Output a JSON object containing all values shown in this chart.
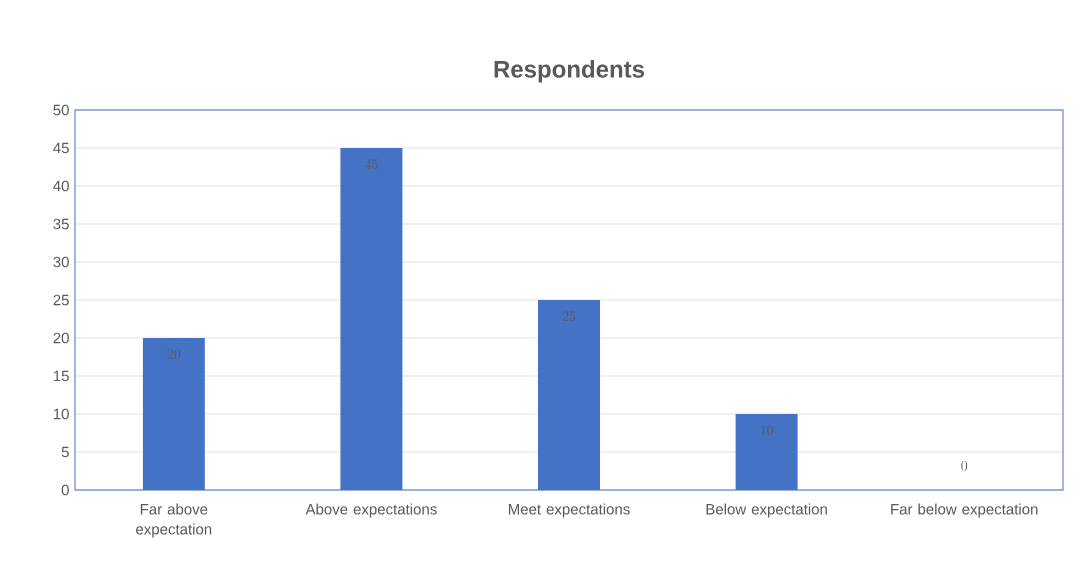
{
  "chart_data": {
    "type": "bar",
    "title": "Respondents",
    "categories": [
      "Far above expectation",
      "Above expectations",
      "Meet expectations",
      "Below expectation",
      "Far below expectation"
    ],
    "values": [
      20,
      45,
      25,
      10,
      0
    ],
    "color": "#4472c4",
    "ylim": [
      0,
      50
    ],
    "yticks": [
      0,
      5,
      10,
      15,
      20,
      25,
      30,
      35,
      40,
      45,
      50
    ],
    "grid": "y",
    "data_labels": true
  }
}
